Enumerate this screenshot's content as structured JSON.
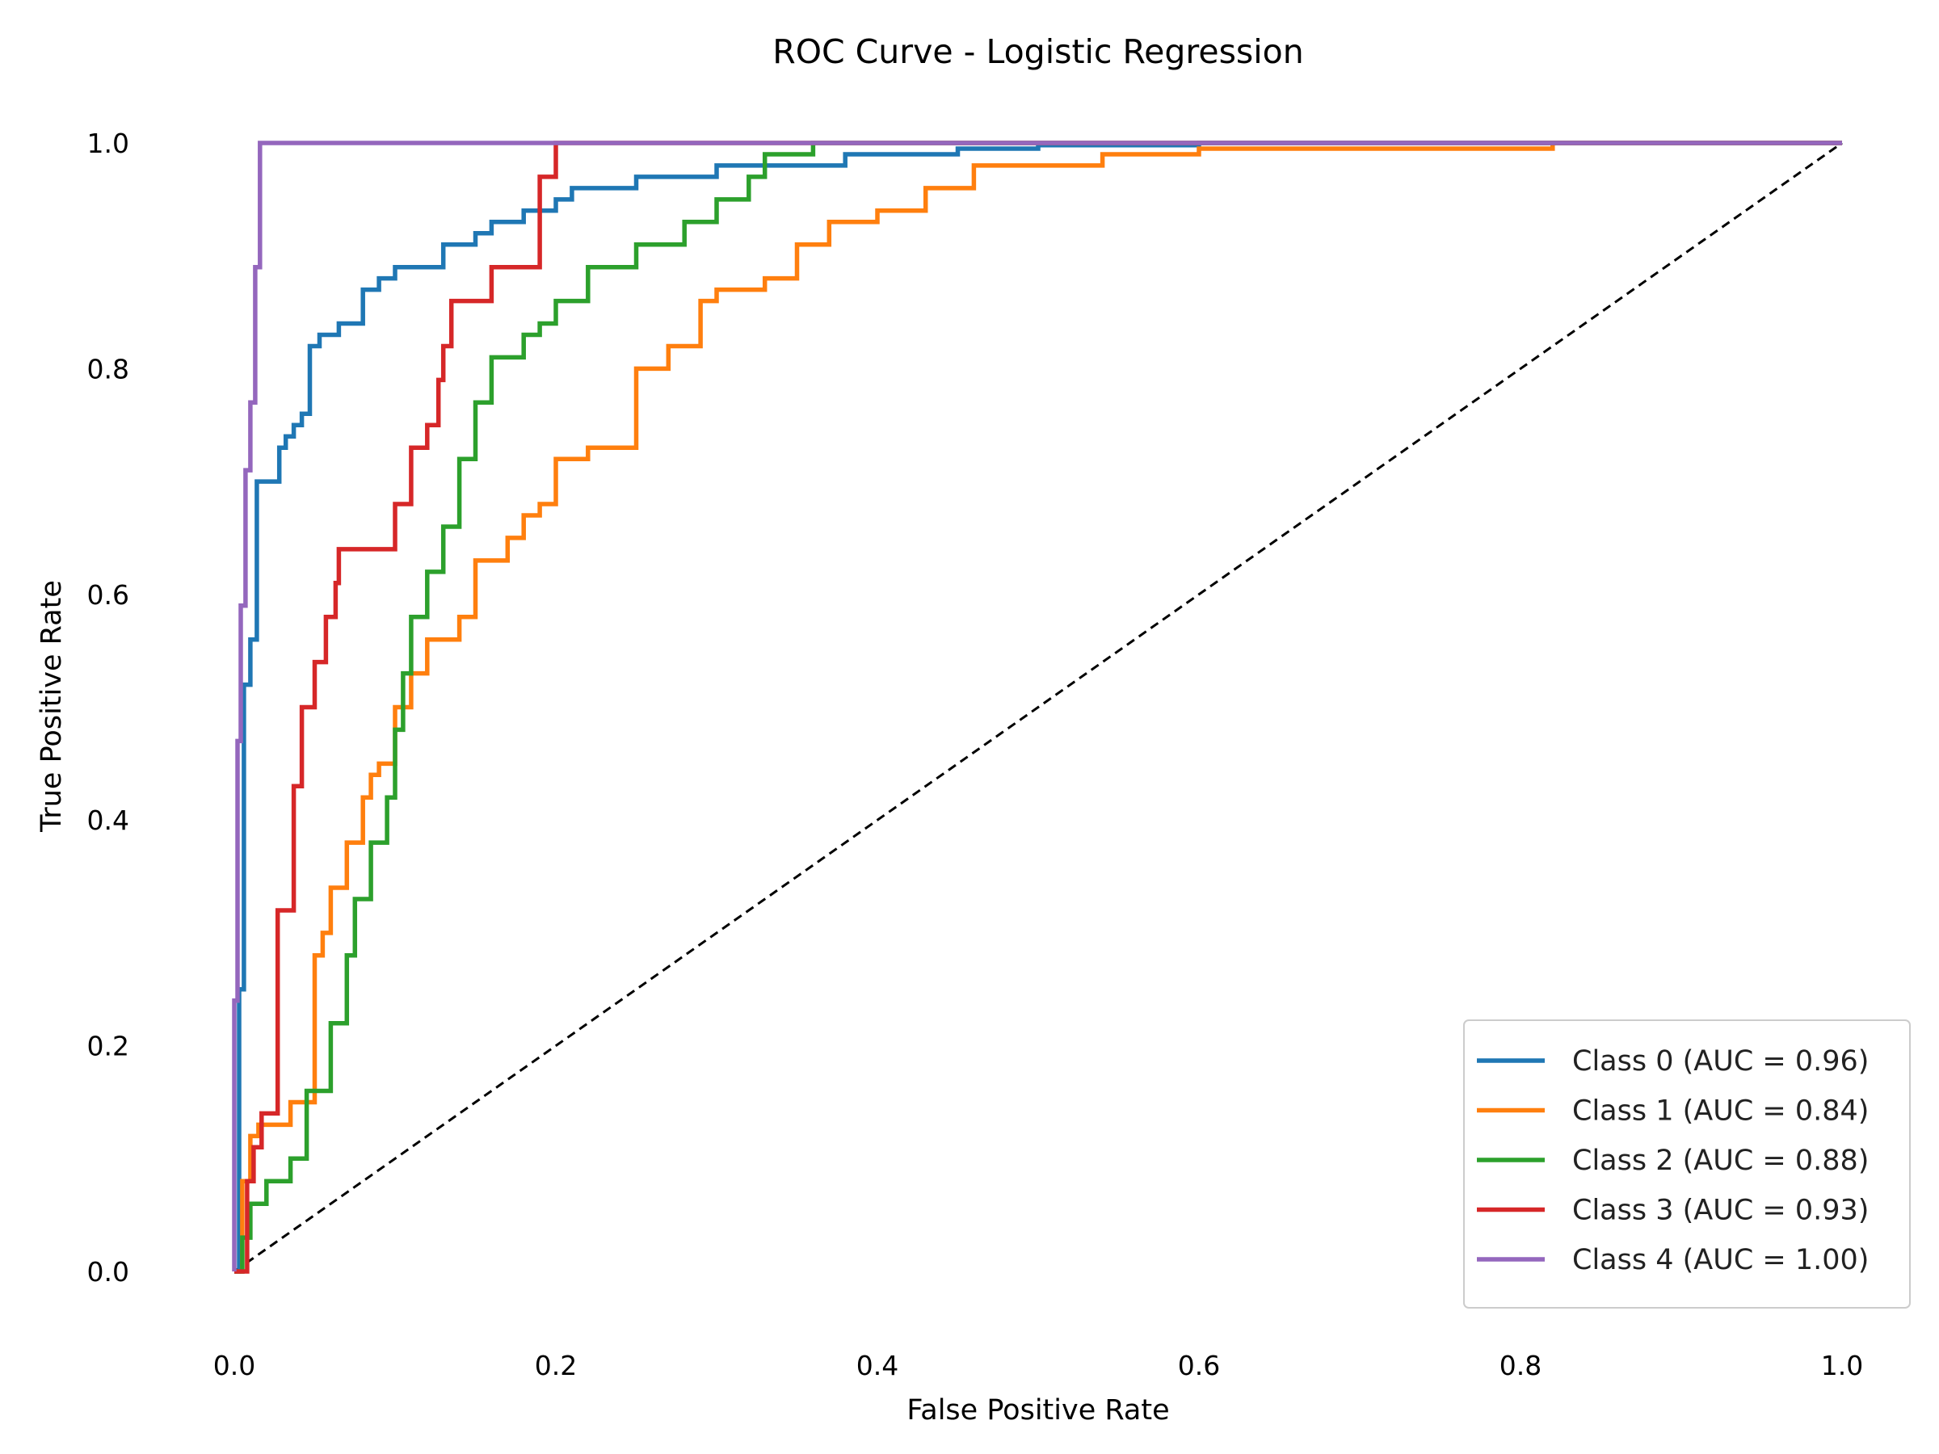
{
  "chart_data": {
    "type": "line",
    "title": "ROC Curve - Logistic Regression",
    "xlabel": "False Positive Rate",
    "ylabel": "True Positive Rate",
    "xlim": [
      0.0,
      1.0
    ],
    "ylim": [
      0.0,
      1.0
    ],
    "xticks": [
      "0.0",
      "0.2",
      "0.4",
      "0.6",
      "0.8",
      "1.0"
    ],
    "yticks": [
      "0.0",
      "0.2",
      "0.4",
      "0.6",
      "0.8",
      "1.0"
    ],
    "grid": false,
    "legend_position": "lower-right",
    "diagonal": {
      "style": "dashed",
      "color": "#000000",
      "x": [
        0,
        1
      ],
      "y": [
        0,
        1
      ]
    },
    "series": [
      {
        "name": "Class 0 (AUC = 0.96)",
        "color": "#1f77b4",
        "x": [
          0.0,
          0.003,
          0.003,
          0.006,
          0.006,
          0.01,
          0.01,
          0.014,
          0.014,
          0.028,
          0.028,
          0.032,
          0.032,
          0.037,
          0.037,
          0.042,
          0.042,
          0.047,
          0.047,
          0.053,
          0.053,
          0.065,
          0.065,
          0.08,
          0.08,
          0.09,
          0.09,
          0.1,
          0.1,
          0.13,
          0.13,
          0.15,
          0.15,
          0.16,
          0.16,
          0.18,
          0.18,
          0.2,
          0.2,
          0.21,
          0.21,
          0.22,
          0.22,
          0.25,
          0.25,
          0.3,
          0.3,
          0.38,
          0.38,
          0.45,
          0.45,
          0.5,
          0.5,
          0.6,
          0.6,
          0.66,
          1.0
        ],
        "y": [
          0.0,
          0.0,
          0.25,
          0.25,
          0.52,
          0.52,
          0.56,
          0.56,
          0.7,
          0.7,
          0.73,
          0.73,
          0.74,
          0.74,
          0.75,
          0.75,
          0.76,
          0.76,
          0.82,
          0.82,
          0.83,
          0.83,
          0.84,
          0.84,
          0.87,
          0.87,
          0.88,
          0.88,
          0.89,
          0.89,
          0.91,
          0.91,
          0.92,
          0.92,
          0.93,
          0.93,
          0.94,
          0.94,
          0.95,
          0.95,
          0.96,
          0.96,
          0.96,
          0.96,
          0.97,
          0.97,
          0.98,
          0.98,
          0.99,
          0.99,
          0.995,
          0.995,
          0.998,
          0.998,
          1.0,
          1.0,
          1.0
        ]
      },
      {
        "name": "Class 1 (AUC = 0.84)",
        "color": "#ff7f0e",
        "x": [
          0.0,
          0.005,
          0.005,
          0.01,
          0.01,
          0.015,
          0.015,
          0.035,
          0.035,
          0.05,
          0.05,
          0.055,
          0.055,
          0.06,
          0.06,
          0.07,
          0.07,
          0.08,
          0.08,
          0.085,
          0.085,
          0.09,
          0.09,
          0.1,
          0.1,
          0.11,
          0.11,
          0.12,
          0.12,
          0.14,
          0.14,
          0.15,
          0.15,
          0.17,
          0.17,
          0.18,
          0.18,
          0.19,
          0.19,
          0.2,
          0.2,
          0.22,
          0.22,
          0.25,
          0.25,
          0.27,
          0.27,
          0.29,
          0.29,
          0.3,
          0.3,
          0.33,
          0.33,
          0.35,
          0.35,
          0.37,
          0.37,
          0.4,
          0.4,
          0.43,
          0.43,
          0.46,
          0.46,
          0.54,
          0.54,
          0.6,
          0.6,
          0.82,
          0.82,
          1.0
        ],
        "y": [
          0.0,
          0.0,
          0.08,
          0.08,
          0.12,
          0.12,
          0.13,
          0.13,
          0.15,
          0.15,
          0.28,
          0.28,
          0.3,
          0.3,
          0.34,
          0.34,
          0.38,
          0.38,
          0.42,
          0.42,
          0.44,
          0.44,
          0.45,
          0.45,
          0.5,
          0.5,
          0.53,
          0.53,
          0.56,
          0.56,
          0.58,
          0.58,
          0.63,
          0.63,
          0.65,
          0.65,
          0.67,
          0.67,
          0.68,
          0.68,
          0.72,
          0.72,
          0.73,
          0.73,
          0.8,
          0.8,
          0.82,
          0.82,
          0.86,
          0.86,
          0.87,
          0.87,
          0.88,
          0.88,
          0.91,
          0.91,
          0.93,
          0.93,
          0.94,
          0.94,
          0.96,
          0.96,
          0.98,
          0.98,
          0.99,
          0.99,
          0.995,
          0.995,
          1.0,
          1.0
        ]
      },
      {
        "name": "Class 2 (AUC = 0.88)",
        "color": "#2ca02c",
        "x": [
          0.0,
          0.005,
          0.005,
          0.01,
          0.01,
          0.02,
          0.02,
          0.035,
          0.035,
          0.045,
          0.045,
          0.06,
          0.06,
          0.07,
          0.07,
          0.075,
          0.075,
          0.085,
          0.085,
          0.095,
          0.095,
          0.1,
          0.1,
          0.105,
          0.105,
          0.11,
          0.11,
          0.12,
          0.12,
          0.13,
          0.13,
          0.14,
          0.14,
          0.15,
          0.15,
          0.16,
          0.16,
          0.18,
          0.18,
          0.19,
          0.19,
          0.2,
          0.2,
          0.22,
          0.22,
          0.25,
          0.25,
          0.28,
          0.28,
          0.3,
          0.3,
          0.32,
          0.32,
          0.33,
          0.33,
          0.36,
          0.36,
          1.0
        ],
        "y": [
          0.0,
          0.0,
          0.03,
          0.03,
          0.06,
          0.06,
          0.08,
          0.08,
          0.1,
          0.1,
          0.16,
          0.16,
          0.22,
          0.22,
          0.28,
          0.28,
          0.33,
          0.33,
          0.38,
          0.38,
          0.42,
          0.42,
          0.48,
          0.48,
          0.53,
          0.53,
          0.58,
          0.58,
          0.62,
          0.62,
          0.66,
          0.66,
          0.72,
          0.72,
          0.77,
          0.77,
          0.81,
          0.81,
          0.83,
          0.83,
          0.84,
          0.84,
          0.86,
          0.86,
          0.89,
          0.89,
          0.91,
          0.91,
          0.93,
          0.93,
          0.95,
          0.95,
          0.97,
          0.97,
          0.99,
          0.99,
          1.0,
          1.0
        ]
      },
      {
        "name": "Class 3 (AUC = 0.93)",
        "color": "#d62728",
        "x": [
          0.0,
          0.008,
          0.008,
          0.012,
          0.012,
          0.017,
          0.017,
          0.027,
          0.027,
          0.037,
          0.037,
          0.042,
          0.042,
          0.05,
          0.05,
          0.057,
          0.057,
          0.063,
          0.063,
          0.065,
          0.065,
          0.1,
          0.1,
          0.11,
          0.11,
          0.12,
          0.12,
          0.127,
          0.127,
          0.13,
          0.13,
          0.135,
          0.135,
          0.14,
          0.14,
          0.16,
          0.16,
          0.19,
          0.19,
          0.2,
          0.2,
          1.0
        ],
        "y": [
          0.0,
          0.0,
          0.08,
          0.08,
          0.11,
          0.11,
          0.14,
          0.14,
          0.32,
          0.32,
          0.43,
          0.43,
          0.5,
          0.5,
          0.54,
          0.54,
          0.58,
          0.58,
          0.61,
          0.61,
          0.64,
          0.64,
          0.68,
          0.68,
          0.73,
          0.73,
          0.75,
          0.75,
          0.79,
          0.79,
          0.82,
          0.82,
          0.86,
          0.86,
          0.86,
          0.86,
          0.89,
          0.89,
          0.97,
          0.97,
          1.0,
          1.0
        ]
      },
      {
        "name": "Class 4 (AUC = 1.00)",
        "color": "#9467bd",
        "x": [
          0.0,
          0.0,
          0.002,
          0.002,
          0.004,
          0.004,
          0.007,
          0.007,
          0.01,
          0.01,
          0.013,
          0.013,
          0.016,
          0.016,
          1.0
        ],
        "y": [
          0.0,
          0.24,
          0.24,
          0.47,
          0.47,
          0.59,
          0.59,
          0.71,
          0.71,
          0.77,
          0.77,
          0.89,
          0.89,
          1.0,
          1.0
        ]
      }
    ]
  }
}
